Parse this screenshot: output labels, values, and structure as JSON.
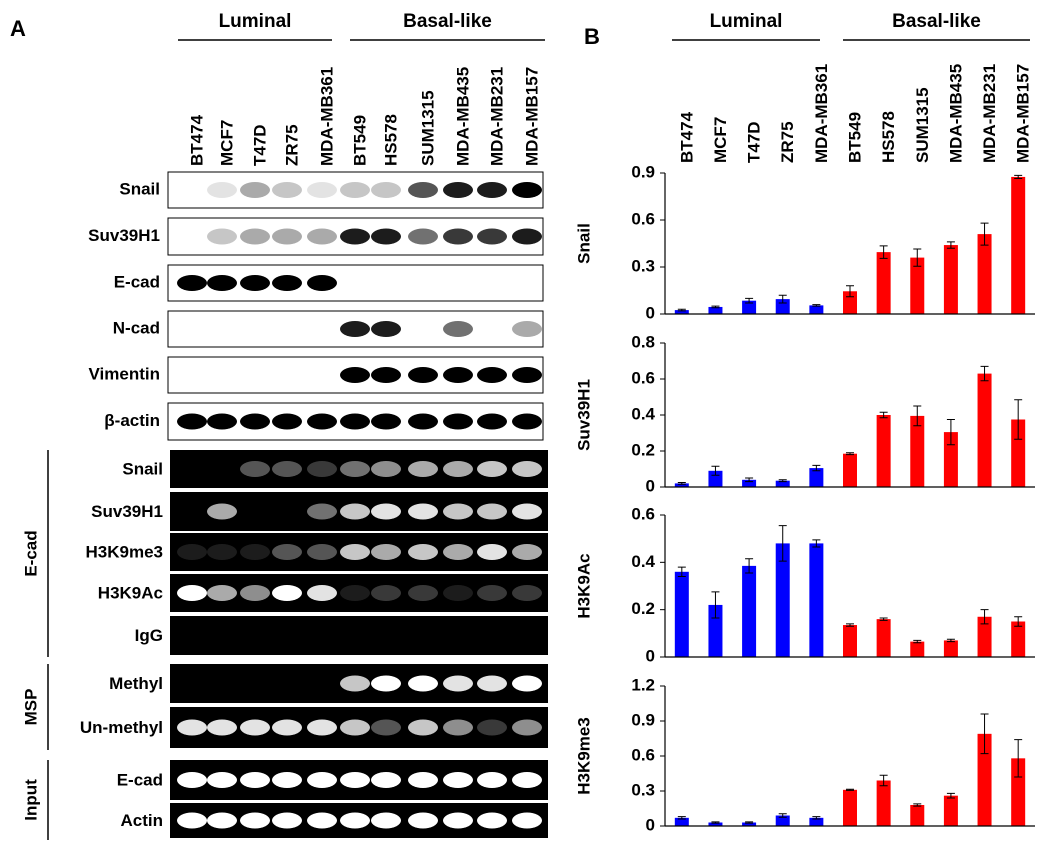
{
  "panel_a": {
    "label": "A",
    "groups": [
      "Luminal",
      "Basal-like"
    ],
    "lanes": [
      "BT474",
      "MCF7",
      "T47D",
      "ZR75",
      "MDA-MB361",
      "BT549",
      "HS578",
      "SUM1315",
      "MDA-MB435",
      "MDA-MB231",
      "MDA-MB157"
    ],
    "western": [
      "Snail",
      "Suv39H1",
      "E-cad",
      "N-cad",
      "Vimentin",
      "β-actin"
    ],
    "chip": {
      "label": "E-cad",
      "rows": [
        "Snail",
        "Suv39H1",
        "H3K9me3",
        "H3K9Ac",
        "IgG"
      ]
    },
    "msp": {
      "label": "MSP",
      "rows": [
        "Methyl",
        "Un-methyl"
      ]
    },
    "input": {
      "label": "Input",
      "rows": [
        "E-cad",
        "Actin"
      ]
    }
  },
  "panel_b": {
    "label": "B",
    "groups": [
      "Luminal",
      "Basal-like"
    ]
  },
  "chart_data": [
    {
      "type": "bar",
      "ylabel": "Snail",
      "categories": [
        "BT474",
        "MCF7",
        "T47D",
        "ZR75",
        "MDA-MB361",
        "BT549",
        "HS578",
        "SUM1315",
        "MDA-MB435",
        "MDA-MB231",
        "MDA-MB157"
      ],
      "values": [
        0.025,
        0.045,
        0.085,
        0.095,
        0.055,
        0.145,
        0.395,
        0.36,
        0.44,
        0.51,
        0.875
      ],
      "errors": [
        0.005,
        0.005,
        0.015,
        0.025,
        0.005,
        0.035,
        0.04,
        0.055,
        0.02,
        0.07,
        0.01
      ],
      "colors": [
        "#0000ff",
        "#0000ff",
        "#0000ff",
        "#0000ff",
        "#0000ff",
        "#ff0000",
        "#ff0000",
        "#ff0000",
        "#ff0000",
        "#ff0000",
        "#ff0000"
      ],
      "ylim": [
        0,
        0.9
      ],
      "yticks": [
        0,
        0.3,
        0.6,
        0.9
      ]
    },
    {
      "type": "bar",
      "ylabel": "Suv39H1",
      "values": [
        0.02,
        0.09,
        0.04,
        0.035,
        0.105,
        0.185,
        0.4,
        0.395,
        0.305,
        0.63,
        0.375
      ],
      "errors": [
        0.005,
        0.025,
        0.01,
        0.005,
        0.015,
        0.005,
        0.015,
        0.055,
        0.07,
        0.04,
        0.11
      ],
      "colors": [
        "#0000ff",
        "#0000ff",
        "#0000ff",
        "#0000ff",
        "#0000ff",
        "#ff0000",
        "#ff0000",
        "#ff0000",
        "#ff0000",
        "#ff0000",
        "#ff0000"
      ],
      "ylim": [
        0,
        0.8
      ],
      "yticks": [
        0,
        0.2,
        0.4,
        0.6,
        0.8
      ]
    },
    {
      "type": "bar",
      "ylabel": "H3K9Ac",
      "values": [
        0.36,
        0.22,
        0.385,
        0.48,
        0.48,
        0.135,
        0.16,
        0.065,
        0.07,
        0.17,
        0.15
      ],
      "errors": [
        0.02,
        0.055,
        0.03,
        0.075,
        0.015,
        0.005,
        0.005,
        0.005,
        0.005,
        0.03,
        0.02
      ],
      "colors": [
        "#0000ff",
        "#0000ff",
        "#0000ff",
        "#0000ff",
        "#0000ff",
        "#ff0000",
        "#ff0000",
        "#ff0000",
        "#ff0000",
        "#ff0000",
        "#ff0000"
      ],
      "ylim": [
        0,
        0.6
      ],
      "yticks": [
        0,
        0.2,
        0.4,
        0.6
      ]
    },
    {
      "type": "bar",
      "ylabel": "H3K9me3",
      "values": [
        0.07,
        0.03,
        0.03,
        0.09,
        0.07,
        0.31,
        0.39,
        0.18,
        0.26,
        0.79,
        0.58
      ],
      "errors": [
        0.01,
        0.005,
        0.005,
        0.015,
        0.01,
        0.005,
        0.045,
        0.01,
        0.02,
        0.17,
        0.16
      ],
      "colors": [
        "#0000ff",
        "#0000ff",
        "#0000ff",
        "#0000ff",
        "#0000ff",
        "#ff0000",
        "#ff0000",
        "#ff0000",
        "#ff0000",
        "#ff0000",
        "#ff0000"
      ],
      "ylim": [
        0,
        1.2
      ],
      "yticks": [
        0,
        0.3,
        0.6,
        0.9,
        1.2
      ]
    }
  ]
}
